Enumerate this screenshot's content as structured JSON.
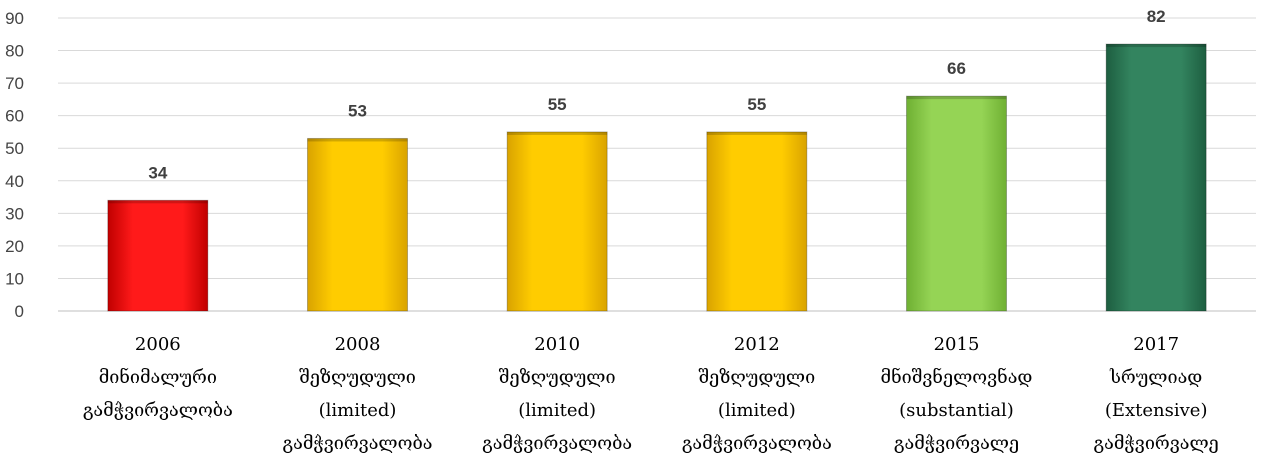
{
  "chart_data": {
    "type": "bar",
    "title": "",
    "xlabel": "",
    "ylabel": "",
    "ylim": [
      0,
      90
    ],
    "yticks": [
      0,
      10,
      20,
      30,
      40,
      50,
      60,
      70,
      80,
      90
    ],
    "grid": true,
    "legend": "none",
    "categories": [
      [
        "2006",
        "მინიმალური",
        "გამჭვირვალობა"
      ],
      [
        "2008",
        "შეზღუდული",
        "(limited)",
        "გამჭვირვალობა"
      ],
      [
        "2010",
        "შეზღუდული",
        "(limited)",
        "გამჭვირვალობა"
      ],
      [
        "2012",
        "შეზღუდული",
        "(limited)",
        "გამჭვირვალობა"
      ],
      [
        "2015",
        "მნიშვნელოვნად",
        "(substantial)",
        "გამჭვირვალე"
      ],
      [
        "2017",
        "სრულიად",
        "(Extensive)",
        "გამჭვირვალე"
      ]
    ],
    "values": [
      34,
      53,
      55,
      55,
      66,
      82
    ],
    "colors": [
      "#ff0000",
      "#ffc800",
      "#ffc800",
      "#ffc800",
      "#92d050",
      "#2e7d5a"
    ]
  }
}
